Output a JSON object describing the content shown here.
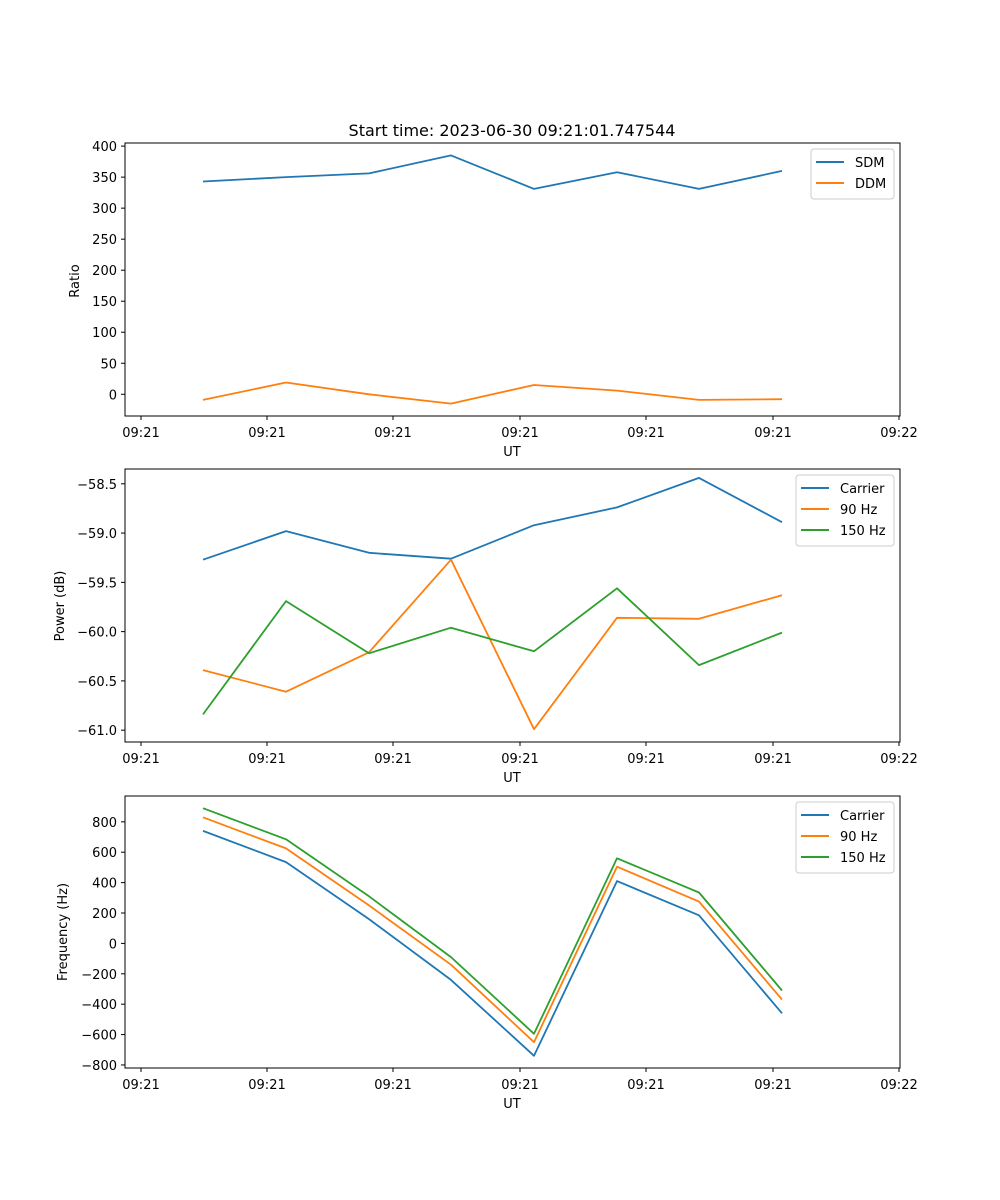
{
  "chart_data": [
    {
      "type": "line",
      "title": "Start time: 2023-06-30 09:21:01.747544",
      "xlabel": "UT",
      "ylabel": "Ratio",
      "x_tick_labels": [
        "09:21",
        "09:21",
        "09:21",
        "09:21",
        "09:21",
        "09:21",
        "09:22"
      ],
      "ylim": [
        -35,
        405
      ],
      "y_ticks": [
        0,
        50,
        100,
        150,
        200,
        250,
        300,
        350,
        400
      ],
      "y_tick_labels": [
        "0",
        "50",
        "100",
        "150",
        "200",
        "250",
        "300",
        "350",
        "400"
      ],
      "legend_position": "upper right",
      "series": [
        {
          "name": "SDM",
          "color": "#1f77b4",
          "values": [
            343,
            350,
            356,
            385,
            331,
            358,
            331,
            360
          ]
        },
        {
          "name": "DDM",
          "color": "#ff7f0e",
          "values": [
            -9,
            19,
            0,
            -15,
            15,
            6,
            -9,
            -8
          ]
        }
      ]
    },
    {
      "type": "line",
      "title": "",
      "xlabel": "UT",
      "ylabel": "Power (dB)",
      "x_tick_labels": [
        "09:21",
        "09:21",
        "09:21",
        "09:21",
        "09:21",
        "09:21",
        "09:22"
      ],
      "ylim": [
        -61.12,
        -58.35
      ],
      "y_ticks": [
        -61.0,
        -60.5,
        -60.0,
        -59.5,
        -59.0,
        -58.5
      ],
      "y_tick_labels": [
        "−61.0",
        "−60.5",
        "−60.0",
        "−59.5",
        "−59.0",
        "−58.5"
      ],
      "legend_position": "upper right",
      "series": [
        {
          "name": "Carrier",
          "color": "#1f77b4",
          "values": [
            -59.27,
            -58.98,
            -59.2,
            -59.26,
            -58.92,
            -58.74,
            -58.44,
            -58.89
          ]
        },
        {
          "name": "90 Hz",
          "color": "#ff7f0e",
          "values": [
            -60.39,
            -60.61,
            -60.21,
            -59.27,
            -60.99,
            -59.86,
            -59.87,
            -59.63
          ]
        },
        {
          "name": "150 Hz",
          "color": "#2ca02c",
          "values": [
            -60.84,
            -59.69,
            -60.22,
            -59.96,
            -60.2,
            -59.56,
            -60.34,
            -60.01
          ]
        }
      ]
    },
    {
      "type": "line",
      "title": "",
      "xlabel": "UT",
      "ylabel": "Frequency (Hz)",
      "x_tick_labels": [
        "09:21",
        "09:21",
        "09:21",
        "09:21",
        "09:21",
        "09:21",
        "09:22"
      ],
      "ylim": [
        -820,
        970
      ],
      "y_ticks": [
        -800,
        -600,
        -400,
        -200,
        0,
        200,
        400,
        600,
        800
      ],
      "y_tick_labels": [
        "−800",
        "−600",
        "−400",
        "−200",
        "0",
        "200",
        "400",
        "600",
        "800"
      ],
      "legend_position": "upper right",
      "series": [
        {
          "name": "Carrier",
          "color": "#1f77b4",
          "values": [
            740,
            535,
            160,
            -240,
            -740,
            410,
            185,
            -460
          ]
        },
        {
          "name": "90 Hz",
          "color": "#ff7f0e",
          "values": [
            830,
            625,
            250,
            -140,
            -650,
            505,
            275,
            -370
          ]
        },
        {
          "name": "150 Hz",
          "color": "#2ca02c",
          "values": [
            890,
            685,
            310,
            -90,
            -595,
            560,
            335,
            -310
          ]
        }
      ]
    }
  ]
}
